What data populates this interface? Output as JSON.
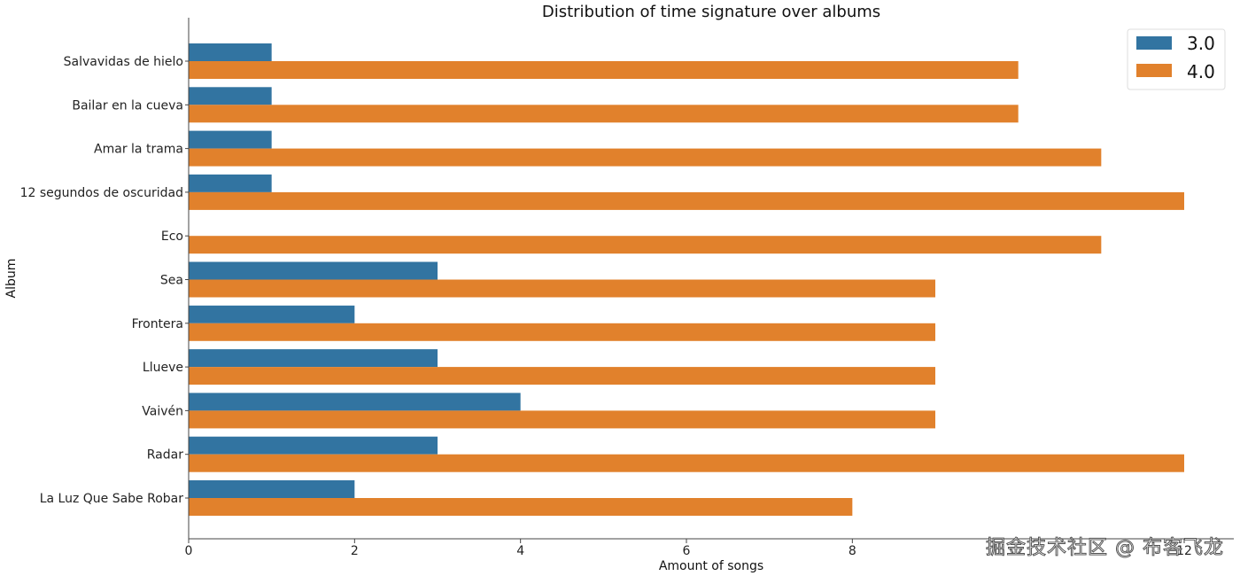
{
  "chart_data": {
    "type": "bar",
    "orientation": "horizontal",
    "title": "Distribution of time signature over albums",
    "xlabel": "Amount of songs",
    "ylabel": "Album",
    "categories": [
      "Salvavidas de hielo",
      "Bailar en la cueva",
      "Amar la trama",
      "12 segundos de oscuridad",
      "Eco",
      "Sea",
      "Frontera",
      "Llueve",
      "Vaivén",
      "Radar",
      "La Luz Que Sabe Robar"
    ],
    "series": [
      {
        "name": "3.0",
        "color": "#3274a1",
        "values": [
          1,
          1,
          1,
          1,
          0,
          3,
          2,
          3,
          4,
          3,
          2
        ]
      },
      {
        "name": "4.0",
        "color": "#e1812c",
        "values": [
          10,
          10,
          11,
          12,
          11,
          9,
          9,
          9,
          9,
          12,
          8
        ]
      }
    ],
    "xlim": [
      0,
      12.5
    ],
    "xticks": [
      0,
      2,
      4,
      6,
      8,
      10,
      12
    ],
    "xtick_labels": [
      "0",
      "2",
      "4",
      "6",
      "8",
      "",
      "12"
    ],
    "grid": false,
    "legend_position": "top-right"
  },
  "watermark": "掘金技术社区 @ 布客飞龙"
}
